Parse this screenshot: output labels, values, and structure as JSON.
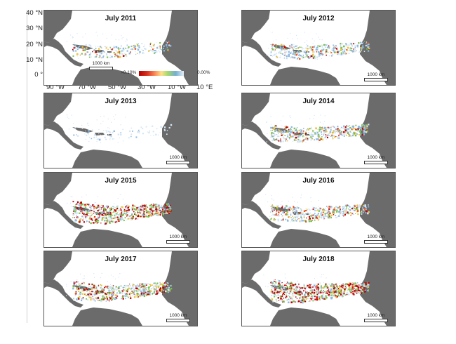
{
  "colors": {
    "land": "#6b6b6b",
    "sea": "#ffffff",
    "high": "#c00000",
    "mid_high": "#e8541c",
    "mid": "#f2c232",
    "low": "#7dbf4a",
    "very_low": "#8fb8e0",
    "trace": "#d6e6f5"
  },
  "latitude_labels": [
    "40 °N",
    "30 °N",
    "20 °N",
    "10 °N",
    "0 °"
  ],
  "longitude_labels": [
    "90 °W",
    "70 °W",
    "50 °W",
    "30 °W",
    "10 °W",
    "10 °E"
  ],
  "legend": {
    "low_label": ">0.10%",
    "high_label": "0.00%"
  },
  "panels": [
    {
      "title": "July 2011",
      "scale": "1000 km",
      "intensity": 0.25
    },
    {
      "title": "July 2012",
      "scale": "1000 km",
      "intensity": 0.45
    },
    {
      "title": "July 2013",
      "scale": "1000 km",
      "intensity": 0.03
    },
    {
      "title": "July 2014",
      "scale": "1000 km",
      "intensity": 0.55
    },
    {
      "title": "July 2015",
      "scale": "1000 km",
      "intensity": 0.95
    },
    {
      "title": "July 2016",
      "scale": "1000 km",
      "intensity": 0.5
    },
    {
      "title": "July 2017",
      "scale": "1000 km",
      "intensity": 0.75
    },
    {
      "title": "July 2018",
      "scale": "1000 km",
      "intensity": 1.0
    }
  ]
}
